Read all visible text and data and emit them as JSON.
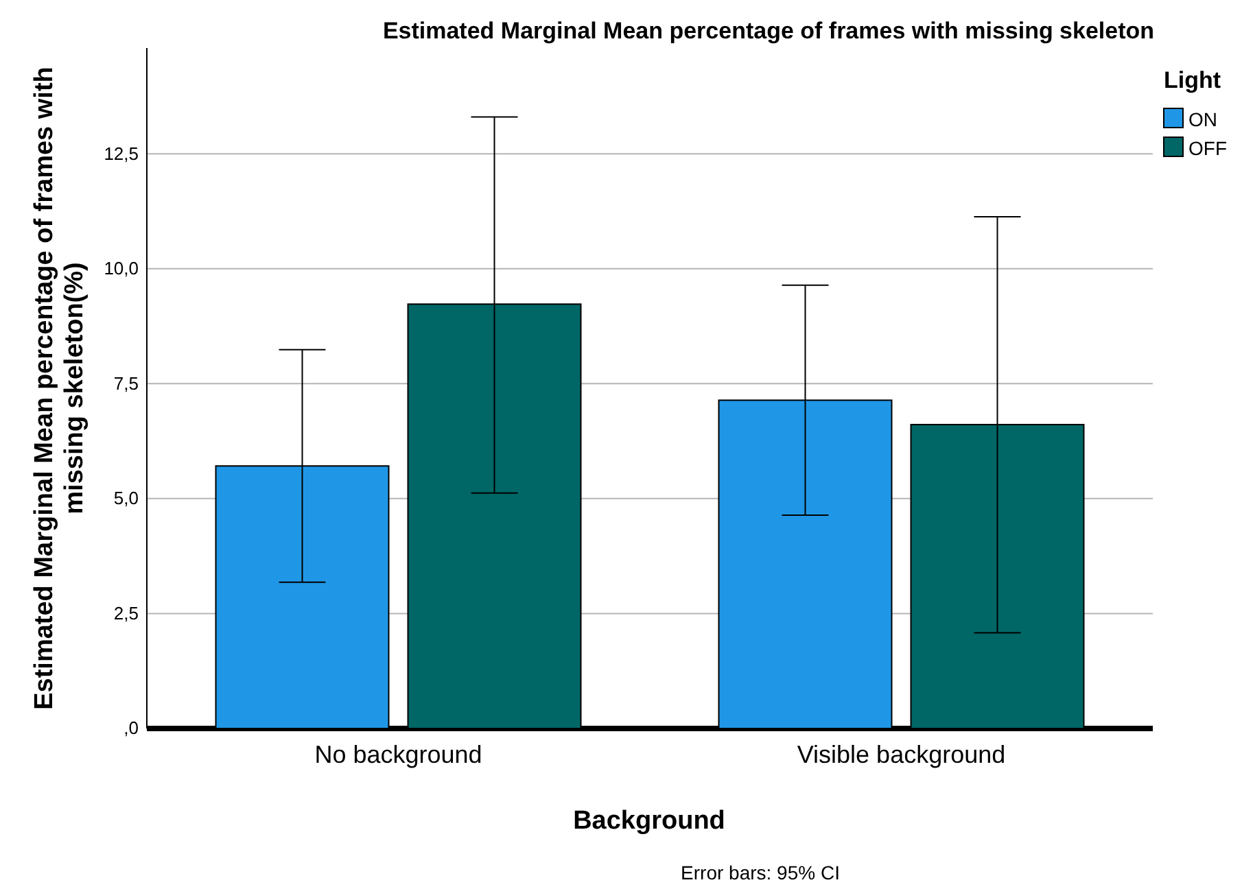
{
  "chart_data": {
    "type": "bar",
    "title": "Estimated Marginal Mean percentage of frames with missing skeleton",
    "xlabel": "Background",
    "ylabel": "Estimated Marginal Mean percentage of frames with missing skeleton(%)",
    "legend_title": "Light",
    "categories": [
      "No background",
      "Visible background"
    ],
    "series": [
      {
        "name": "ON",
        "color": "#1f97e6",
        "values": [
          5.71,
          7.14
        ],
        "errors": [
          [
            3.18,
            8.24
          ],
          [
            4.64,
            9.64
          ]
        ]
      },
      {
        "name": "OFF",
        "color": "#006666",
        "values": [
          9.23,
          6.61
        ],
        "errors": [
          [
            5.12,
            13.3
          ],
          [
            2.08,
            11.13
          ]
        ]
      }
    ],
    "ylim": [
      0,
      14.8
    ],
    "yticks": [
      {
        "value": 0,
        "label": ",0"
      },
      {
        "value": 2.5,
        "label": "2,5"
      },
      {
        "value": 5,
        "label": "5,0"
      },
      {
        "value": 7.5,
        "label": "7,5"
      },
      {
        "value": 10,
        "label": "10,0"
      },
      {
        "value": 12.5,
        "label": "12,5"
      }
    ],
    "grid": "y",
    "legend": "top right",
    "annotations": [
      "Error bars: 95% CI"
    ]
  }
}
